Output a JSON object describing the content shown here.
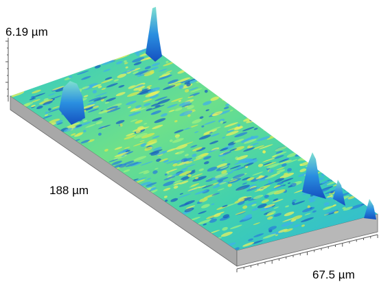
{
  "axes": {
    "z_label": "6.19 µm",
    "y_label": "188 µm",
    "x_label": "67.5 µm"
  }
}
